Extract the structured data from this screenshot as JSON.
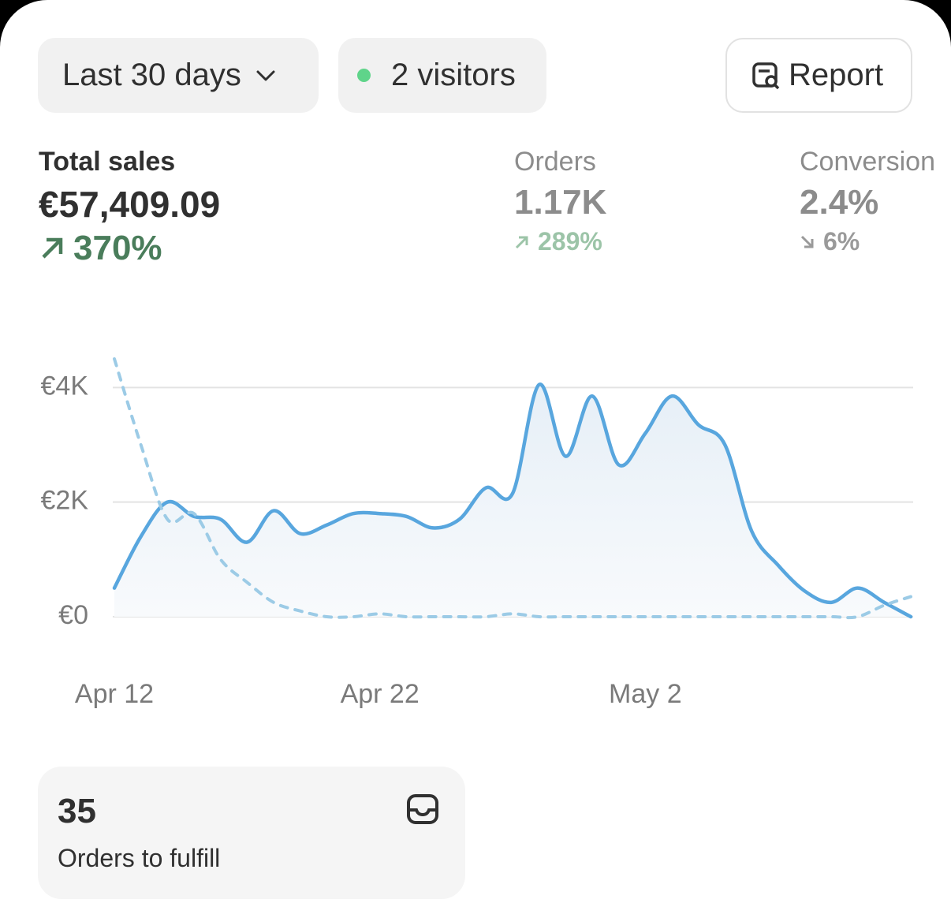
{
  "header": {
    "range": "Last 30 days",
    "visitors": "2 visitors",
    "report": "Report"
  },
  "metrics": [
    {
      "label": "Total sales",
      "value": "€57,409.09",
      "change": "370%"
    },
    {
      "label": "Orders",
      "value": "1.17K",
      "change": "289%"
    },
    {
      "label": "Conversion",
      "value": "2.4%",
      "change": "6%"
    }
  ],
  "chart_data": {
    "type": "line",
    "categories": [
      "Apr 12",
      null,
      null,
      null,
      null,
      null,
      null,
      null,
      null,
      null,
      "Apr 22",
      null,
      null,
      null,
      null,
      null,
      null,
      null,
      null,
      null,
      "May 2",
      null,
      null,
      null,
      null,
      null,
      null,
      null,
      null,
      null,
      null
    ],
    "series": [
      {
        "color": "#58a6de",
        "style": "solid",
        "area": true,
        "values": [
          500,
          1400,
          2000,
          1750,
          1700,
          1300,
          1850,
          1450,
          1600,
          1800,
          1800,
          1750,
          1550,
          1700,
          2250,
          2150,
          4050,
          2800,
          3850,
          2650,
          3200,
          3850,
          3350,
          3000,
          1500,
          900,
          450,
          250,
          500,
          250,
          0
        ]
      },
      {
        "color": "#9ccbe6",
        "style": "dashed",
        "area": false,
        "values": [
          4500,
          3000,
          1700,
          1800,
          1000,
          600,
          250,
          100,
          0,
          0,
          50,
          0,
          0,
          0,
          0,
          50,
          0,
          0,
          0,
          0,
          0,
          0,
          0,
          0,
          0,
          0,
          0,
          0,
          0,
          200,
          350
        ]
      }
    ],
    "ylim": [
      0,
      4500
    ],
    "yticks": [
      {
        "value": 0,
        "label": "€0"
      },
      {
        "value": 2000,
        "label": "€2K"
      },
      {
        "value": 4000,
        "label": "€4K"
      }
    ],
    "grid": true
  },
  "card": {
    "count": "35",
    "label": "Orders to fulfill"
  }
}
